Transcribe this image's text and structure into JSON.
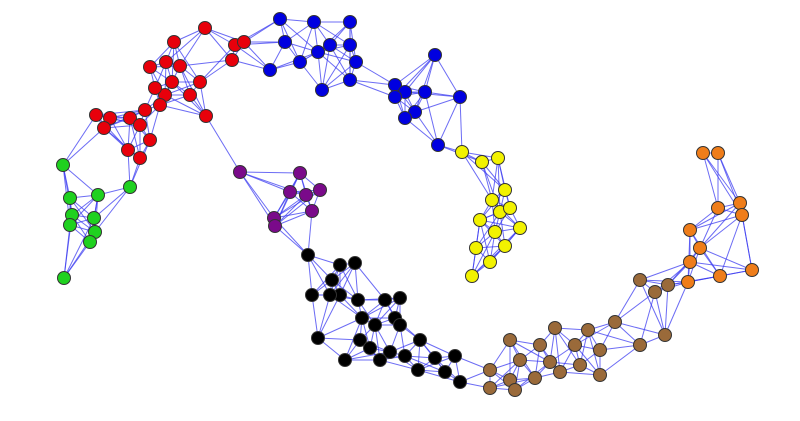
{
  "figure": {
    "type": "network-graph",
    "edge_color": "#3b3bf0",
    "node_outline_color": "#333333",
    "clusters": [
      {
        "id": "red",
        "color": "#e8000b"
      },
      {
        "id": "green",
        "color": "#1fd11f"
      },
      {
        "id": "blue",
        "color": "#0000e0"
      },
      {
        "id": "yellow",
        "color": "#f2f200"
      },
      {
        "id": "purple",
        "color": "#7a0a8a"
      },
      {
        "id": "black",
        "color": "#000000"
      },
      {
        "id": "brown",
        "color": "#9a6a3a"
      },
      {
        "id": "orange",
        "color": "#ef7d1a"
      }
    ]
  }
}
